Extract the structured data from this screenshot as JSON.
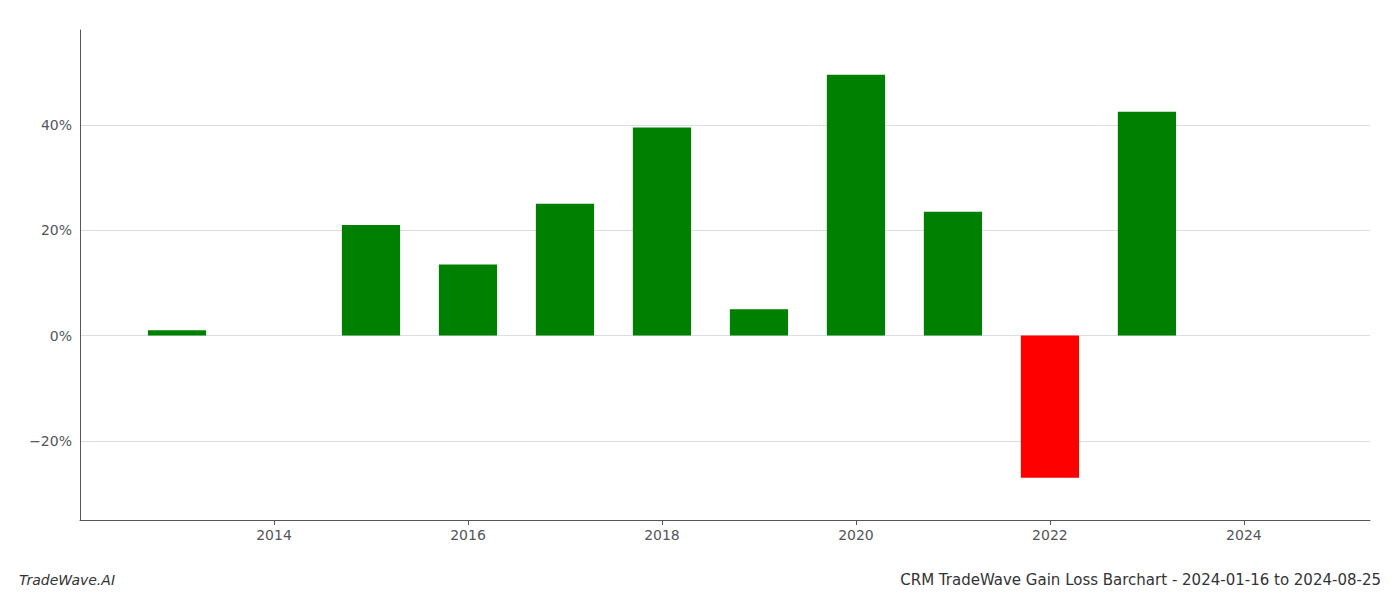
{
  "chart_data": {
    "type": "bar",
    "title": "CRM TradeWave Gain Loss Barchart - 2024-01-16 to 2024-08-25",
    "annotations": [
      "TradeWave.AI"
    ],
    "x": [
      2013,
      2015,
      2016,
      2017,
      2018,
      2019,
      2020,
      2021,
      2022,
      2023
    ],
    "values": [
      1.0,
      21.0,
      13.5,
      25.0,
      39.5,
      5.0,
      49.5,
      23.5,
      -27.0,
      42.5
    ],
    "colors": [
      "#008000",
      "#008000",
      "#008000",
      "#008000",
      "#008000",
      "#008000",
      "#008000",
      "#008000",
      "#ff0000",
      "#008000"
    ],
    "xlim": [
      2012.0,
      2025.3
    ],
    "xticks": [
      2014,
      2016,
      2018,
      2020,
      2022,
      2024
    ],
    "ylim": [
      -35,
      58
    ],
    "yticks": [
      {
        "value": -20,
        "label": "−20%"
      },
      {
        "value": 0,
        "label": "0%"
      },
      {
        "value": 20,
        "label": "20%"
      },
      {
        "value": 40,
        "label": "40%"
      }
    ],
    "grid": true
  }
}
